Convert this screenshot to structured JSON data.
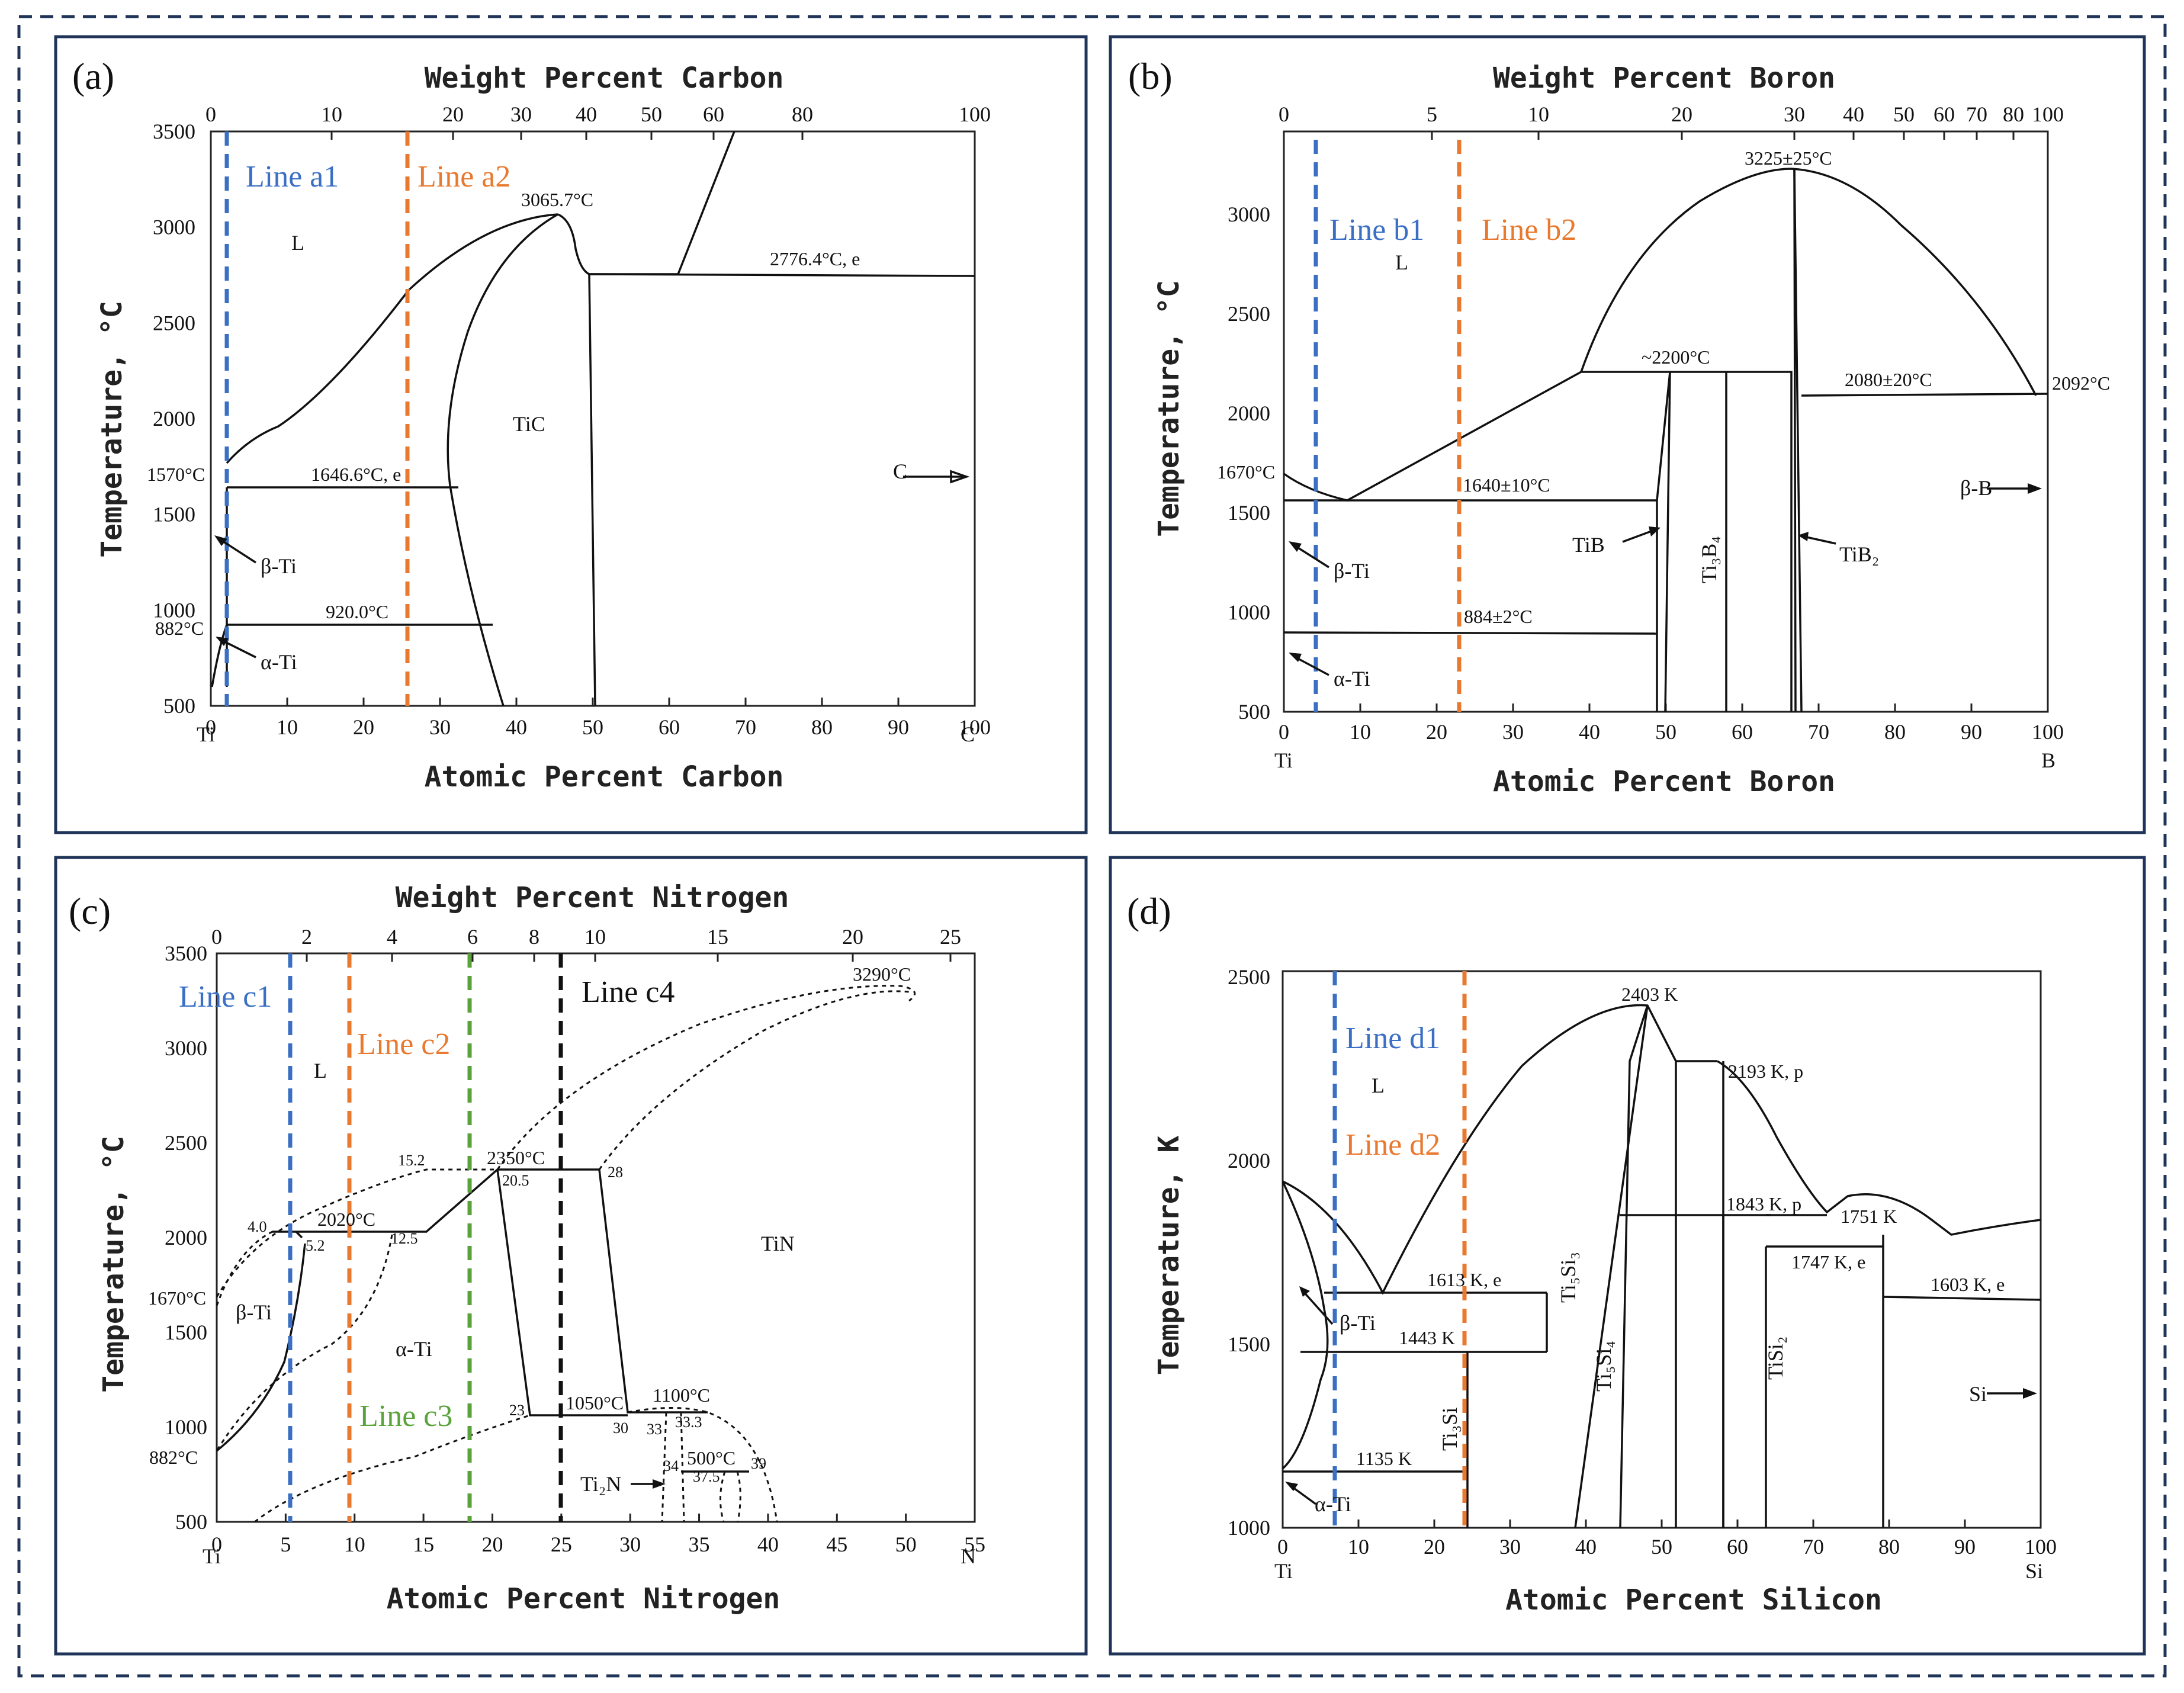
{
  "colors": {
    "blue": "#3a6fc4",
    "orange": "#e8792f",
    "green": "#5aa33a",
    "black": "#111111",
    "border_navy": "#1f3458"
  },
  "panels": {
    "a": {
      "letter": "(a)",
      "top_axis_title": "Weight Percent Carbon",
      "bottom_axis_title": "Atomic Percent Carbon",
      "y_axis_title": "Temperature, °C",
      "top_ticks": [
        "0",
        "10",
        "20",
        "30",
        "40",
        "50",
        "60",
        "80",
        "100"
      ],
      "bottom_ticks": [
        "0",
        "10",
        "20",
        "30",
        "40",
        "50",
        "60",
        "70",
        "80",
        "90",
        "100"
      ],
      "y_ticks": [
        "3500",
        "3000",
        "2500",
        "2000",
        "1500",
        "1000",
        "500"
      ],
      "end_left": "Ti",
      "end_right": "C",
      "lines": [
        "Line a1",
        "Line a2"
      ],
      "labels": {
        "L": "L",
        "TiC": "TiC",
        "C": "C",
        "beta": "β-Ti",
        "alpha": "α-Ti",
        "t3065": "3065.7°C",
        "t2776": "2776.4°C, e",
        "t1646": "1646.6°C, e",
        "t1570": "1570°C",
        "t920": "920.0°C",
        "t882": "882°C"
      }
    },
    "b": {
      "letter": "(b)",
      "top_axis_title": "Weight Percent Boron",
      "bottom_axis_title": "Atomic Percent Boron",
      "y_axis_title": "Temperature, °C",
      "top_ticks": [
        "0",
        "5",
        "10",
        "20",
        "30",
        "40",
        "50",
        "60",
        "70",
        "80",
        "100"
      ],
      "bottom_ticks": [
        "0",
        "10",
        "20",
        "30",
        "40",
        "50",
        "60",
        "70",
        "80",
        "90",
        "100"
      ],
      "y_ticks": [
        "3000",
        "2500",
        "2000",
        "1500",
        "1000",
        "500"
      ],
      "end_left": "Ti",
      "end_right": "B",
      "lines": [
        "Line b1",
        "Line b2"
      ],
      "labels": {
        "L": "L",
        "TiB": "TiB",
        "Ti3B4": "Ti₃B₄",
        "TiB2": "TiB₂",
        "betaB": "β-B",
        "beta": "β-Ti",
        "alpha": "α-Ti",
        "t3225": "3225±25°C",
        "t2200": "~2200°C",
        "t2080": "2080±20°C",
        "t2092": "2092°C",
        "t1670": "1670°C",
        "t1640": "1640±10°C",
        "t884": "884±2°C"
      }
    },
    "c": {
      "letter": "(c)",
      "top_axis_title": "Weight Percent Nitrogen",
      "bottom_axis_title": "Atomic Percent Nitrogen",
      "y_axis_title": "Temperature, °C",
      "top_ticks": [
        "0",
        "2",
        "4",
        "6",
        "8",
        "10",
        "15",
        "20",
        "25"
      ],
      "bottom_ticks": [
        "0",
        "5",
        "10",
        "15",
        "20",
        "25",
        "30",
        "35",
        "40",
        "45",
        "50",
        "55"
      ],
      "y_ticks": [
        "3500",
        "3000",
        "2500",
        "2000",
        "1500",
        "1000",
        "500"
      ],
      "end_left": "Ti",
      "end_right": "N",
      "lines": [
        "Line c1",
        "Line c2",
        "Line c3",
        "Line c4"
      ],
      "labels": {
        "L": "L",
        "TiN": "TiN",
        "Ti2N": "Ti₂N",
        "beta": "β-Ti",
        "alpha": "α-Ti",
        "t3290": "3290°C",
        "t2350": "2350°C",
        "t2020": "2020°C",
        "t1670": "1670°C",
        "t1050": "1050°C",
        "t1100": "1100°C",
        "t500": "500°C",
        "t882": "882°C",
        "n152": "15.2",
        "n205": "20.5",
        "n28": "28",
        "n40": "4.0",
        "n52": "5.2",
        "n125": "12.5",
        "n23": "23",
        "n30": "30",
        "n33": "33",
        "n333": "33.3",
        "n34": "34",
        "n375": "37.5",
        "n39": "39"
      }
    },
    "d": {
      "letter": "(d)",
      "bottom_axis_title": "Atomic Percent Silicon",
      "y_axis_title": "Temperature, K",
      "bottom_ticks": [
        "0",
        "10",
        "20",
        "30",
        "40",
        "50",
        "60",
        "70",
        "80",
        "90",
        "100"
      ],
      "y_ticks": [
        "2500",
        "2000",
        "1500",
        "1000"
      ],
      "end_left": "Ti",
      "end_right": "Si",
      "lines": [
        "Line d1",
        "Line d2"
      ],
      "labels": {
        "L": "L",
        "Si": "Si",
        "beta": "β-Ti",
        "alpha": "α-Ti",
        "Ti5Si3": "Ti₅Si₃",
        "Ti5Si4": "Ti₅Si₄",
        "Ti3Si": "Ti₃Si",
        "TiSi2": "TiSi₂",
        "t2403": "2403 K",
        "t2193": "2193 K, p",
        "t1843": "1843 K, p",
        "t1751": "1751 K",
        "t1747": "1747 K, e",
        "t1613": "1613 K, e",
        "t1603": "1603 K, e",
        "t1443": "1443 K",
        "t1135": "1135 K"
      }
    }
  }
}
